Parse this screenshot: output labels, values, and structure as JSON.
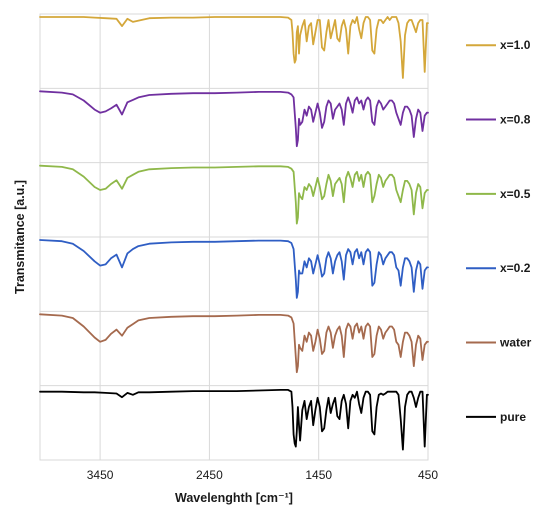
{
  "chart_data": {
    "type": "line",
    "title": "",
    "xlabel": "Wavelenghth [cm⁻¹]",
    "ylabel": "Transmitance [a.u.]",
    "xlim": [
      4000,
      450
    ],
    "x_reversed": true,
    "x_ticks": [
      3450,
      2450,
      1450,
      450
    ],
    "y_ticks_shown": false,
    "grid": true,
    "legend_placement": "right",
    "series": [
      {
        "name": "x=1.0",
        "color": "#d4a73a",
        "baseline": 1.0,
        "x": [
          4000,
          3800,
          3600,
          3500,
          3400,
          3300,
          3250,
          3200,
          3150,
          3000,
          2800,
          2600,
          2400,
          2200,
          2000,
          1800,
          1730,
          1700,
          1690,
          1680,
          1670,
          1660,
          1650,
          1640,
          1630,
          1620,
          1600,
          1580,
          1560,
          1540,
          1520,
          1500,
          1480,
          1460,
          1440,
          1420,
          1400,
          1380,
          1360,
          1340,
          1320,
          1300,
          1280,
          1260,
          1240,
          1220,
          1200,
          1180,
          1160,
          1140,
          1120,
          1100,
          1080,
          1060,
          1040,
          1020,
          1000,
          980,
          960,
          940,
          920,
          900,
          880,
          860,
          840,
          820,
          800,
          780,
          760,
          740,
          720,
          700,
          680,
          660,
          640,
          620,
          600,
          580,
          560,
          540,
          520,
          500,
          480,
          460,
          450
        ],
        "y": [
          0.0,
          0.0,
          0.0,
          0.01,
          0.02,
          0.03,
          0.15,
          0.03,
          0.08,
          0.02,
          0.01,
          0.01,
          0.0,
          0.0,
          0.0,
          0.0,
          0.01,
          0.05,
          0.25,
          0.6,
          0.75,
          0.7,
          0.25,
          0.15,
          0.6,
          0.3,
          0.15,
          0.05,
          0.4,
          0.15,
          0.1,
          0.45,
          0.25,
          0.05,
          0.05,
          0.5,
          0.55,
          0.25,
          0.05,
          0.35,
          0.2,
          0.05,
          0.35,
          0.4,
          0.15,
          0.05,
          0.2,
          0.6,
          0.15,
          0.05,
          0.1,
          0.0,
          0.2,
          0.35,
          0.1,
          0.0,
          0.0,
          0.05,
          0.55,
          0.6,
          0.2,
          0.05,
          0.05,
          0.1,
          0.05,
          0.0,
          0.05,
          0.0,
          0.0,
          0.0,
          0.1,
          0.4,
          1.0,
          0.3,
          0.1,
          0.05,
          0.05,
          0.15,
          0.25,
          0.1,
          0.05,
          0.05,
          0.9,
          0.1,
          0.1
        ]
      },
      {
        "name": "x=0.8",
        "color": "#7030a0",
        "baseline": 1.0,
        "x": [
          4000,
          3800,
          3700,
          3600,
          3500,
          3450,
          3400,
          3350,
          3300,
          3250,
          3200,
          3150,
          3100,
          3000,
          2800,
          2600,
          2400,
          2200,
          2000,
          1800,
          1730,
          1700,
          1680,
          1660,
          1650,
          1640,
          1630,
          1620,
          1600,
          1580,
          1560,
          1540,
          1520,
          1500,
          1480,
          1460,
          1440,
          1420,
          1400,
          1380,
          1360,
          1340,
          1320,
          1300,
          1280,
          1260,
          1240,
          1220,
          1200,
          1180,
          1160,
          1140,
          1120,
          1100,
          1080,
          1060,
          1040,
          1020,
          1000,
          980,
          960,
          940,
          920,
          900,
          880,
          860,
          840,
          820,
          800,
          780,
          760,
          740,
          720,
          700,
          680,
          660,
          640,
          620,
          600,
          580,
          560,
          540,
          520,
          500,
          480,
          460,
          450
        ],
        "y": [
          0.0,
          0.02,
          0.05,
          0.15,
          0.3,
          0.35,
          0.33,
          0.28,
          0.22,
          0.38,
          0.18,
          0.14,
          0.1,
          0.06,
          0.04,
          0.03,
          0.03,
          0.02,
          0.01,
          0.01,
          0.02,
          0.05,
          0.1,
          0.6,
          0.9,
          0.8,
          0.45,
          0.55,
          0.5,
          0.3,
          0.4,
          0.25,
          0.3,
          0.5,
          0.35,
          0.2,
          0.35,
          0.6,
          0.5,
          0.25,
          0.15,
          0.2,
          0.45,
          0.3,
          0.25,
          0.2,
          0.3,
          0.55,
          0.2,
          0.1,
          0.2,
          0.35,
          0.15,
          0.1,
          0.2,
          0.15,
          0.3,
          0.15,
          0.1,
          0.15,
          0.5,
          0.55,
          0.25,
          0.15,
          0.2,
          0.3,
          0.25,
          0.2,
          0.15,
          0.15,
          0.2,
          0.35,
          0.45,
          0.55,
          0.35,
          0.25,
          0.25,
          0.3,
          0.4,
          0.75,
          0.45,
          0.3,
          0.35,
          0.65,
          0.4,
          0.35,
          0.35
        ]
      },
      {
        "name": "x=0.5",
        "color": "#8fb84a",
        "baseline": 1.0,
        "x": [
          4000,
          3800,
          3700,
          3600,
          3500,
          3450,
          3400,
          3350,
          3300,
          3250,
          3200,
          3150,
          3100,
          3000,
          2800,
          2600,
          2400,
          2200,
          2000,
          1800,
          1730,
          1700,
          1680,
          1660,
          1650,
          1640,
          1630,
          1620,
          1600,
          1580,
          1560,
          1540,
          1520,
          1500,
          1480,
          1460,
          1440,
          1420,
          1400,
          1380,
          1360,
          1340,
          1320,
          1300,
          1280,
          1260,
          1240,
          1220,
          1200,
          1180,
          1160,
          1140,
          1120,
          1100,
          1080,
          1060,
          1040,
          1020,
          1000,
          980,
          960,
          940,
          920,
          900,
          880,
          860,
          840,
          820,
          800,
          780,
          760,
          740,
          720,
          700,
          680,
          660,
          640,
          620,
          600,
          580,
          560,
          540,
          520,
          500,
          480,
          460,
          450
        ],
        "y": [
          0.0,
          0.02,
          0.06,
          0.18,
          0.35,
          0.4,
          0.38,
          0.3,
          0.24,
          0.38,
          0.2,
          0.15,
          0.1,
          0.06,
          0.04,
          0.03,
          0.03,
          0.02,
          0.01,
          0.01,
          0.02,
          0.05,
          0.1,
          0.6,
          0.95,
          0.85,
          0.45,
          0.5,
          0.55,
          0.35,
          0.4,
          0.3,
          0.35,
          0.5,
          0.35,
          0.2,
          0.35,
          0.55,
          0.5,
          0.3,
          0.15,
          0.25,
          0.5,
          0.3,
          0.25,
          0.2,
          0.3,
          0.6,
          0.2,
          0.1,
          0.2,
          0.35,
          0.15,
          0.1,
          0.25,
          0.15,
          0.35,
          0.15,
          0.1,
          0.15,
          0.6,
          0.5,
          0.3,
          0.15,
          0.2,
          0.35,
          0.25,
          0.2,
          0.15,
          0.15,
          0.2,
          0.4,
          0.5,
          0.6,
          0.4,
          0.25,
          0.25,
          0.3,
          0.4,
          0.8,
          0.45,
          0.3,
          0.35,
          0.7,
          0.45,
          0.4,
          0.4
        ]
      },
      {
        "name": "x=0.2",
        "color": "#2f5ec4",
        "baseline": 1.0,
        "x": [
          4000,
          3800,
          3700,
          3600,
          3500,
          3450,
          3400,
          3350,
          3300,
          3250,
          3200,
          3150,
          3100,
          3000,
          2800,
          2600,
          2400,
          2200,
          2000,
          1800,
          1730,
          1700,
          1680,
          1660,
          1650,
          1640,
          1630,
          1620,
          1600,
          1580,
          1560,
          1540,
          1520,
          1500,
          1480,
          1460,
          1440,
          1420,
          1400,
          1380,
          1360,
          1340,
          1320,
          1300,
          1280,
          1260,
          1240,
          1220,
          1200,
          1180,
          1160,
          1140,
          1120,
          1100,
          1080,
          1060,
          1040,
          1020,
          1000,
          980,
          960,
          940,
          920,
          900,
          880,
          860,
          840,
          820,
          800,
          780,
          760,
          740,
          720,
          700,
          680,
          660,
          640,
          620,
          600,
          580,
          560,
          540,
          520,
          500,
          480,
          460,
          450
        ],
        "y": [
          0.0,
          0.02,
          0.06,
          0.18,
          0.35,
          0.42,
          0.4,
          0.3,
          0.24,
          0.45,
          0.22,
          0.15,
          0.1,
          0.06,
          0.04,
          0.03,
          0.03,
          0.02,
          0.01,
          0.01,
          0.02,
          0.05,
          0.15,
          0.65,
          0.95,
          0.85,
          0.5,
          0.55,
          0.55,
          0.35,
          0.45,
          0.3,
          0.35,
          0.55,
          0.4,
          0.25,
          0.4,
          0.6,
          0.55,
          0.3,
          0.2,
          0.3,
          0.55,
          0.35,
          0.25,
          0.2,
          0.35,
          0.65,
          0.25,
          0.15,
          0.2,
          0.4,
          0.2,
          0.15,
          0.3,
          0.2,
          0.4,
          0.2,
          0.15,
          0.2,
          0.75,
          0.7,
          0.4,
          0.2,
          0.25,
          0.4,
          0.3,
          0.25,
          0.2,
          0.2,
          0.25,
          0.45,
          0.5,
          0.75,
          0.45,
          0.3,
          0.3,
          0.35,
          0.45,
          0.85,
          0.5,
          0.35,
          0.4,
          0.8,
          0.5,
          0.45,
          0.45
        ]
      },
      {
        "name": "water",
        "color": "#a56a4e",
        "baseline": 1.0,
        "x": [
          4000,
          3800,
          3700,
          3600,
          3500,
          3450,
          3400,
          3350,
          3300,
          3250,
          3200,
          3150,
          3100,
          3000,
          2800,
          2600,
          2400,
          2200,
          2000,
          1800,
          1730,
          1700,
          1680,
          1660,
          1650,
          1640,
          1630,
          1620,
          1600,
          1580,
          1560,
          1540,
          1520,
          1500,
          1480,
          1460,
          1440,
          1420,
          1400,
          1380,
          1360,
          1340,
          1320,
          1300,
          1280,
          1260,
          1240,
          1220,
          1200,
          1180,
          1160,
          1140,
          1120,
          1100,
          1080,
          1060,
          1040,
          1020,
          1000,
          980,
          960,
          940,
          920,
          900,
          880,
          860,
          840,
          820,
          800,
          780,
          760,
          740,
          720,
          700,
          680,
          660,
          640,
          620,
          600,
          580,
          560,
          540,
          520,
          500,
          480,
          460,
          450
        ],
        "y": [
          0.0,
          0.02,
          0.06,
          0.2,
          0.38,
          0.45,
          0.42,
          0.32,
          0.25,
          0.35,
          0.22,
          0.16,
          0.1,
          0.06,
          0.04,
          0.03,
          0.03,
          0.02,
          0.01,
          0.01,
          0.02,
          0.05,
          0.15,
          0.7,
          0.95,
          0.85,
          0.5,
          0.55,
          0.6,
          0.35,
          0.45,
          0.3,
          0.35,
          0.6,
          0.45,
          0.25,
          0.4,
          0.65,
          0.6,
          0.3,
          0.2,
          0.3,
          0.55,
          0.35,
          0.25,
          0.2,
          0.35,
          0.7,
          0.25,
          0.15,
          0.2,
          0.4,
          0.2,
          0.15,
          0.3,
          0.2,
          0.4,
          0.2,
          0.15,
          0.2,
          0.7,
          0.65,
          0.35,
          0.2,
          0.25,
          0.4,
          0.3,
          0.25,
          0.2,
          0.2,
          0.25,
          0.45,
          0.5,
          0.7,
          0.45,
          0.3,
          0.3,
          0.35,
          0.45,
          0.85,
          0.5,
          0.35,
          0.4,
          0.75,
          0.5,
          0.45,
          0.45
        ]
      },
      {
        "name": "pure",
        "color": "#000000",
        "baseline": 1.0,
        "x": [
          4000,
          3800,
          3600,
          3500,
          3400,
          3300,
          3250,
          3200,
          3150,
          3100,
          3000,
          2800,
          2600,
          2400,
          2200,
          2000,
          1800,
          1730,
          1700,
          1690,
          1680,
          1670,
          1660,
          1650,
          1640,
          1630,
          1620,
          1600,
          1580,
          1560,
          1540,
          1520,
          1500,
          1480,
          1460,
          1440,
          1420,
          1400,
          1380,
          1360,
          1340,
          1320,
          1300,
          1280,
          1260,
          1240,
          1220,
          1200,
          1180,
          1160,
          1140,
          1120,
          1100,
          1080,
          1060,
          1040,
          1020,
          1000,
          980,
          960,
          940,
          920,
          900,
          880,
          860,
          840,
          820,
          800,
          780,
          760,
          740,
          720,
          700,
          680,
          660,
          640,
          620,
          600,
          580,
          560,
          540,
          520,
          500,
          480,
          460,
          450
        ],
        "y": [
          0.05,
          0.05,
          0.06,
          0.06,
          0.07,
          0.08,
          0.14,
          0.07,
          0.1,
          0.06,
          0.06,
          0.05,
          0.04,
          0.04,
          0.04,
          0.03,
          0.02,
          0.02,
          0.05,
          0.3,
          0.75,
          0.9,
          0.95,
          0.7,
          0.3,
          0.6,
          0.85,
          0.35,
          0.2,
          0.5,
          0.3,
          0.2,
          0.6,
          0.35,
          0.15,
          0.3,
          0.7,
          0.65,
          0.35,
          0.15,
          0.4,
          0.25,
          0.15,
          0.45,
          0.5,
          0.2,
          0.1,
          0.25,
          0.65,
          0.2,
          0.1,
          0.15,
          0.05,
          0.25,
          0.4,
          0.15,
          0.05,
          0.05,
          0.1,
          0.7,
          0.75,
          0.3,
          0.1,
          0.08,
          0.1,
          0.08,
          0.05,
          0.05,
          0.05,
          0.05,
          0.05,
          0.1,
          0.5,
          1.0,
          0.3,
          0.1,
          0.05,
          0.05,
          0.15,
          0.3,
          0.15,
          0.05,
          0.05,
          0.95,
          0.1,
          0.1
        ]
      }
    ]
  }
}
